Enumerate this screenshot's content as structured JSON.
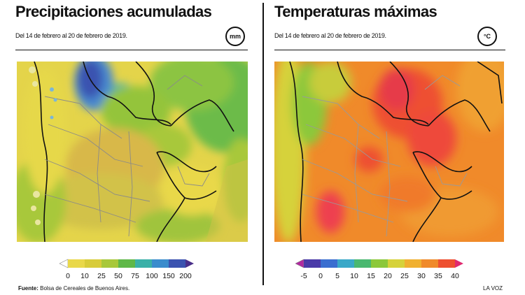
{
  "left": {
    "title": "Precipitaciones acumuladas",
    "subtitle": "Del 14 de febrero al 20 de febrero de 2019.",
    "unit": "mm",
    "legend_labels": [
      "0",
      "10",
      "25",
      "50",
      "75",
      "100",
      "150",
      "200"
    ],
    "legend_colors": [
      "#ffffff",
      "#e9d84a",
      "#d8cc3a",
      "#a8c83a",
      "#5fb848",
      "#3ab0a8",
      "#3a8ccd",
      "#3b53b0",
      "#4a2f8a"
    ]
  },
  "right": {
    "title": "Temperaturas máximas",
    "subtitle": "Del 14 de febrero al 20 de febrero de 2019.",
    "unit": "°C",
    "legend_labels": [
      "-5",
      "0",
      "5",
      "10",
      "15",
      "20",
      "25",
      "30",
      "35",
      "40"
    ],
    "legend_colors": [
      "#b02aa0",
      "#4a3aa8",
      "#3a6ed0",
      "#3aa8c8",
      "#4ab870",
      "#8cc83a",
      "#d6d23a",
      "#f0b030",
      "#f08a2a",
      "#ee5030",
      "#e02a70"
    ]
  },
  "footer": {
    "source_label": "Fuente:",
    "source_text": "Bolsa de Cereales de Buenos Aires.",
    "credit": "LA VOZ"
  },
  "icons": {
    "unit_badge": "circle-badge",
    "legend_arrow": "triangle-arrow"
  }
}
